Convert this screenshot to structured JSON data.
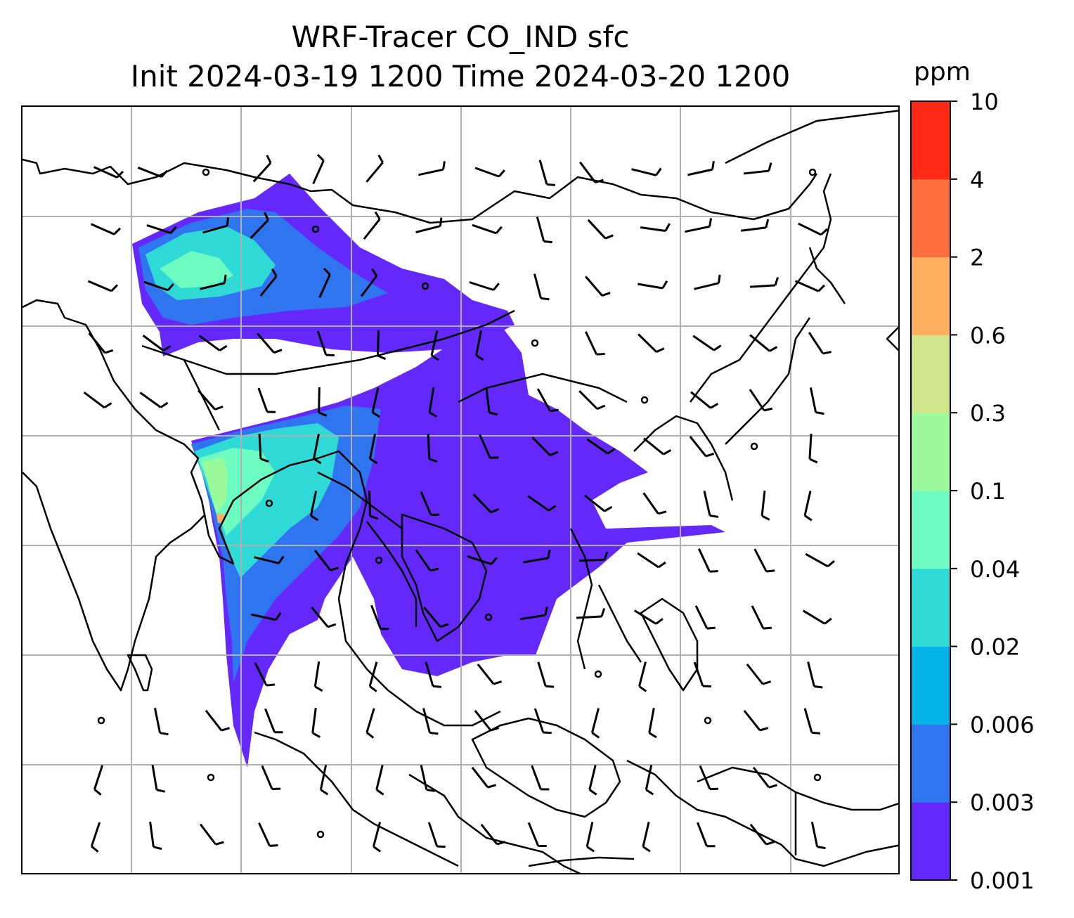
{
  "title": {
    "line1": "WRF-Tracer CO_IND sfc",
    "line2": "Init 2024-03-19 1200 Time 2024-03-20 1200"
  },
  "colorbar": {
    "unit": "ppm",
    "levels": [
      "0.001",
      "0.003",
      "0.006",
      "0.02",
      "0.04",
      "0.1",
      "0.3",
      "0.6",
      "2",
      "4",
      "10"
    ],
    "colors": [
      "#6528fa",
      "#3075f0",
      "#04b3ea",
      "#2fdad6",
      "#6cfbc0",
      "#9bfa9a",
      "#d0e48a",
      "#feb05e",
      "#ff6e3c",
      "#ff2a16"
    ]
  },
  "map": {
    "gridlines": true,
    "gridline_color": "#b0b0b0",
    "coastline_color": "#000000",
    "wind_barb_color": "#000000"
  }
}
